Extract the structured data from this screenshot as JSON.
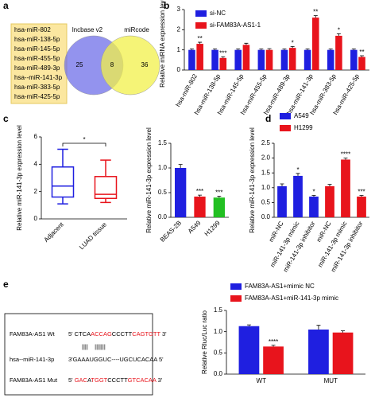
{
  "panel_labels": [
    "a",
    "b",
    "c",
    "d",
    "e"
  ],
  "panel_a": {
    "mirnas": [
      "hsa-miR-802",
      "hsa-miR-138-5p",
      "hsa-miR-145-5p",
      "hsa-miR-455-5p",
      "hsa-miR-489-3p",
      "hsa--miR-141-3p",
      "hsa-miR-383-5p",
      "hsa-miR-425-5p"
    ],
    "venn": {
      "sets": [
        {
          "name": "lncbase v2",
          "color": "#6f6fe8"
        },
        {
          "name": "miRcode",
          "color": "#f2f04a"
        }
      ],
      "counts": [
        25,
        8,
        36
      ]
    }
  },
  "chart_data": [
    {
      "type": "bar",
      "grouped": true,
      "y_label": "Relative miRNA expression levels",
      "categories": [
        "hsa-miR-802",
        "hsa-miR-138-5p",
        "hsa-miR-145-5p",
        "hsa-miR-455-5p",
        "hsa-miR-489-3p",
        "hsa-miR-141-3p",
        "hsa-miR-383-5p",
        "hsa-miR-425-5p"
      ],
      "series": [
        {
          "name": "si-NC",
          "color": "#1f1fe0",
          "values": [
            1,
            1,
            1,
            1,
            1,
            1,
            1,
            1
          ],
          "errors": [
            0.05,
            0.05,
            0.05,
            0.05,
            0.05,
            0.05,
            0.05,
            0.05
          ]
        },
        {
          "name": "si-FAM83A-AS1-1",
          "color": "#e8141c",
          "values": [
            1.3,
            0.6,
            1.25,
            1.0,
            1.1,
            2.6,
            1.7,
            0.65
          ],
          "errors": [
            0.08,
            0.06,
            0.08,
            0.06,
            0.07,
            0.1,
            0.1,
            0.06
          ],
          "annotations": [
            "**",
            "***",
            null,
            null,
            "*",
            "**",
            "*",
            "**"
          ]
        }
      ],
      "ylim": [
        0,
        3
      ],
      "yticks": [
        0,
        1,
        2,
        3
      ],
      "legend": "top-left",
      "x_label_rotation": -60
    },
    {
      "type": "box",
      "y_label": "Relative miR-141-3p expression level",
      "categories": [
        "Adjacent",
        "LUAD tissue"
      ],
      "colors": [
        "#1f1fe0",
        "#e8141c"
      ],
      "boxes": [
        {
          "min": 1.1,
          "q1": 1.6,
          "median": 2.4,
          "q3": 3.8,
          "max": 5.1
        },
        {
          "min": 1.2,
          "q1": 1.5,
          "median": 1.8,
          "q3": 3.1,
          "max": 4.3
        }
      ],
      "ylim": [
        0,
        6
      ],
      "yticks": [
        0,
        2,
        4,
        6
      ],
      "significance": "*",
      "x_label_rotation": -45
    },
    {
      "type": "bar",
      "y_label": "Relative miR-141-3p expression level",
      "categories": [
        "BEAS-2B",
        "A549",
        "H1299"
      ],
      "values": [
        1.0,
        0.42,
        0.4
      ],
      "errors": [
        0.07,
        0.03,
        0.03
      ],
      "colors": [
        "#1f1fe0",
        "#e8141c",
        "#22c022"
      ],
      "annotations": [
        null,
        "***",
        "***"
      ],
      "ylim": [
        0,
        1.5
      ],
      "yticks": [
        {
          "value": 0,
          "label": "0.0"
        },
        {
          "value": 0.5,
          "label": "0.5"
        },
        {
          "value": 1,
          "label": "1.0"
        },
        {
          "value": 1.5,
          "label": "1.5"
        }
      ],
      "x_label_rotation": -45
    },
    {
      "type": "bar",
      "grouped": false,
      "y_label": "Relative miR-141-3p expression level",
      "categories": [
        "miR-NC",
        "miR-141-3p mimic",
        "miR-141-3p inhibitor",
        "miR-NC",
        "miR-141-3p mimic",
        "miR-141-3p inhibitor"
      ],
      "series": [
        {
          "name": "A549",
          "color": "#1f1fe0",
          "values": [
            1.05,
            1.4,
            0.7,
            null,
            null,
            null
          ],
          "errors": [
            0.08,
            0.08,
            0.04,
            null,
            null,
            null
          ],
          "annotations": [
            null,
            "*",
            "*",
            null,
            null,
            null
          ]
        },
        {
          "name": "H1299",
          "color": "#e8141c",
          "values": [
            null,
            null,
            null,
            1.05,
            1.95,
            0.7
          ],
          "errors": [
            null,
            null,
            null,
            0.06,
            0.05,
            0.04
          ],
          "annotations": [
            null,
            null,
            null,
            null,
            "****",
            "***"
          ]
        }
      ],
      "ylim": [
        0,
        2.5
      ],
      "yticks": [
        {
          "value": 0,
          "label": "0.0"
        },
        {
          "value": 0.5,
          "label": "0.5"
        },
        {
          "value": 1,
          "label": "1.0"
        },
        {
          "value": 1.5,
          "label": "1.5"
        },
        {
          "value": 2,
          "label": "2.0"
        },
        {
          "value": 2.5,
          "label": "2.5"
        }
      ],
      "legend": "top-left",
      "x_label_rotation": -60
    },
    {
      "type": "bar",
      "grouped": true,
      "y_label": "Relative Rluc/Luc ratio",
      "categories": [
        "WT",
        "MUT"
      ],
      "series": [
        {
          "name": "FAM83A-AS1+mimic NC",
          "color": "#1f1fe0",
          "values": [
            1.13,
            1.05
          ],
          "errors": [
            0.03,
            0.1
          ]
        },
        {
          "name": "FAM83A-AS1+miR-141-3p mimic",
          "color": "#e8141c",
          "values": [
            0.65,
            0.98
          ],
          "errors": [
            0.03,
            0.04
          ],
          "annotations": [
            "****",
            null
          ]
        }
      ],
      "ylim": [
        0,
        1.5
      ],
      "yticks": [
        {
          "value": 0,
          "label": "0.0"
        },
        {
          "value": 0.5,
          "label": "0.5"
        },
        {
          "value": 1,
          "label": "1.0"
        },
        {
          "value": 1.5,
          "label": "1.5"
        }
      ],
      "legend": "top-left"
    }
  ],
  "panel_e": {
    "wt": {
      "label": "FAM83A-AS1 Wt",
      "segments": [
        {
          "text": "5' CTCA",
          "color": "#000000"
        },
        {
          "text": "ACCAG",
          "color": "#e8141c"
        },
        {
          "text": "CCCTT",
          "color": "#000000"
        },
        {
          "text": "CAGTGTT",
          "color": "#e8141c"
        },
        {
          "text": " 3'",
          "color": "#000000"
        }
      ]
    },
    "pairs": "||||    |||||||",
    "mirna": {
      "label": "hsa--miR-141-3p",
      "sequence": "3'GAAAUGGUC----UGCUCACAA 5'"
    },
    "mut": {
      "label": "FAM83A-AS1 Mut",
      "segments": [
        {
          "text": "5' ",
          "color": "#000000"
        },
        {
          "text": "GAC",
          "color": "#e8141c"
        },
        {
          "text": "A",
          "color": "#000000"
        },
        {
          "text": "TGGT",
          "color": "#e8141c"
        },
        {
          "text": "CCCTT",
          "color": "#000000"
        },
        {
          "text": "GTCACAA",
          "color": "#e8141c"
        },
        {
          "text": " 3'",
          "color": "#000000"
        }
      ]
    }
  }
}
